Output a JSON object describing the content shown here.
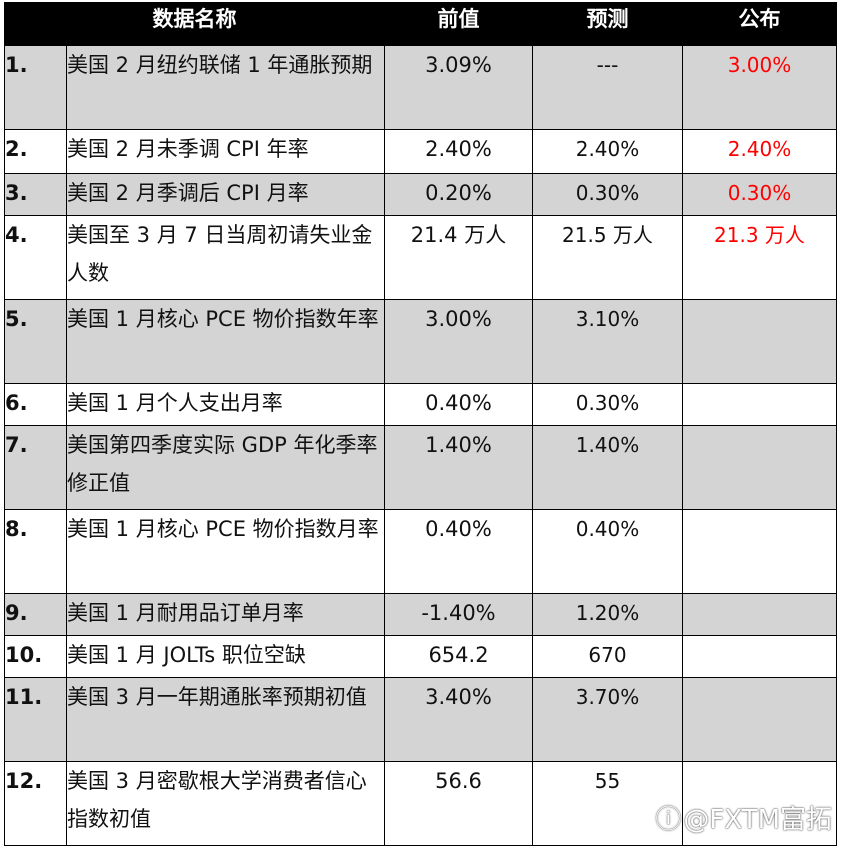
{
  "table": {
    "headers": {
      "name": "数据名称",
      "previous": "前值",
      "forecast": "预测",
      "published": "公布"
    },
    "rows": [
      {
        "num": "1.",
        "name": "美国 2 月纽约联储 1 年通胀预期",
        "previous": "3.09%",
        "forecast": "---",
        "published": "3.00%"
      },
      {
        "num": "2.",
        "name": "美国 2 月未季调 CPI 年率",
        "previous": "2.40%",
        "forecast": "2.40%",
        "published": "2.40%"
      },
      {
        "num": "3.",
        "name": "美国 2 月季调后 CPI 月率",
        "previous": "0.20%",
        "forecast": "0.30%",
        "published": "0.30%"
      },
      {
        "num": "4.",
        "name": "美国至 3 月 7 日当周初请失业金人数",
        "previous": "21.4 万人",
        "forecast": "21.5 万人",
        "published": "21.3 万人"
      },
      {
        "num": "5.",
        "name": "美国 1 月核心 PCE 物价指数年率",
        "previous": "3.00%",
        "forecast": "3.10%",
        "published": ""
      },
      {
        "num": "6.",
        "name": "美国 1 月个人支出月率",
        "previous": "0.40%",
        "forecast": "0.30%",
        "published": ""
      },
      {
        "num": "7.",
        "name": "美国第四季度实际 GDP 年化季率修正值",
        "previous": "1.40%",
        "forecast": "1.40%",
        "published": ""
      },
      {
        "num": "8.",
        "name": "美国 1 月核心 PCE 物价指数月率",
        "previous": "0.40%",
        "forecast": "0.40%",
        "published": ""
      },
      {
        "num": "9.",
        "name": "美国 1 月耐用品订单月率",
        "previous": "-1.40%",
        "forecast": "1.20%",
        "published": ""
      },
      {
        "num": "10.",
        "name": "美国 1 月 JOLTs 职位空缺",
        "previous": "654.2",
        "forecast": "670",
        "published": ""
      },
      {
        "num": "11.",
        "name": "美国 3 月一年期通胀率预期初值",
        "previous": "3.40%",
        "forecast": "3.70%",
        "published": ""
      },
      {
        "num": "12.",
        "name": "美国 3 月密歇根大学消费者信心指数初值",
        "previous": "56.6",
        "forecast": "55",
        "published": ""
      }
    ]
  },
  "watermark": {
    "logo_icon": "zhihu-logo-icon",
    "text": "@FXTM富拓"
  },
  "colors": {
    "header_bg": "#000000",
    "header_text": "#ffffff",
    "shaded_row": "#d4d4d4",
    "published_text": "#ff0000"
  }
}
